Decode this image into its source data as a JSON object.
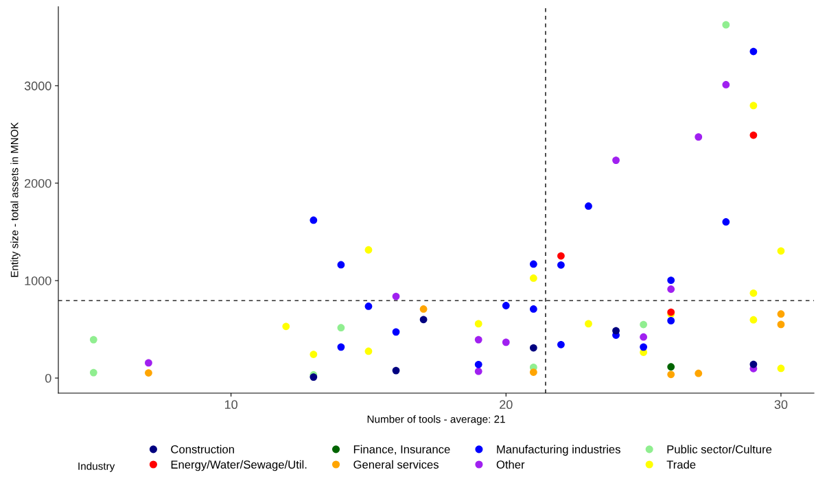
{
  "chart_data": {
    "type": "scatter",
    "xlabel": "Number of tools - average: 21",
    "ylabel": "Entity size - total assets in MNOK",
    "legend_title": "Industry",
    "legend": "bottom",
    "grid": false,
    "marker": "circle",
    "xlim": [
      3.72,
      31.2
    ],
    "ylim": [
      -155,
      3810
    ],
    "xticks": [
      10,
      20,
      30
    ],
    "yticks": [
      0,
      1000,
      2000,
      3000
    ],
    "ref_lines": [
      {
        "axis": "x",
        "value": 21.44,
        "line_style": "dashed",
        "color": "#000000"
      },
      {
        "axis": "y",
        "value": 795,
        "line_style": "dashed",
        "color": "#000000"
      }
    ],
    "series": [
      {
        "name": "Construction",
        "color": "#000080",
        "x": [
          13,
          16,
          17,
          21,
          24,
          29
        ],
        "values": [
          10,
          77,
          600,
          310,
          486,
          141
        ]
      },
      {
        "name": "Energy/Water/Sewage/Util.",
        "color": "#ff0000",
        "x": [
          22,
          26,
          29
        ],
        "values": [
          1253,
          676,
          2492
        ]
      },
      {
        "name": "Finance, Insurance",
        "color": "#006400",
        "x": [
          26
        ],
        "values": [
          115
        ]
      },
      {
        "name": "General services",
        "color": "#ffa500",
        "x": [
          7,
          17,
          21,
          26,
          27,
          30,
          30
        ],
        "values": [
          53,
          708,
          60,
          37,
          48,
          657,
          550
        ]
      },
      {
        "name": "Manufacturing industries",
        "color": "#0000ff",
        "x": [
          13,
          14,
          14,
          15,
          16,
          19,
          20,
          21,
          21,
          22,
          22,
          23,
          24,
          25,
          26,
          26,
          28,
          29
        ],
        "values": [
          1620,
          1162,
          318,
          736,
          473,
          139,
          743,
          1169,
          708,
          1160,
          343,
          1764,
          440,
          318,
          1003,
          589,
          1602,
          3351
        ]
      },
      {
        "name": "Other",
        "color": "#a020f0",
        "x": [
          7,
          16,
          19,
          19,
          20,
          24,
          25,
          26,
          27,
          28,
          29
        ],
        "values": [
          156,
          838,
          394,
          69,
          367,
          2235,
          421,
          912,
          2474,
          3010,
          97
        ]
      },
      {
        "name": "Public sector/Culture",
        "color": "#90ee90",
        "x": [
          5,
          5,
          13,
          14,
          21,
          25,
          28
        ],
        "values": [
          394,
          56,
          32,
          516,
          110,
          549,
          3625
        ]
      },
      {
        "name": "Trade",
        "color": "#ffff00",
        "x": [
          12,
          13,
          15,
          15,
          19,
          21,
          23,
          25,
          26,
          29,
          29,
          29,
          30,
          30
        ],
        "values": [
          530,
          243,
          1315,
          275,
          557,
          1025,
          557,
          264,
          657,
          2796,
          871,
          597,
          1304,
          99
        ]
      }
    ]
  }
}
